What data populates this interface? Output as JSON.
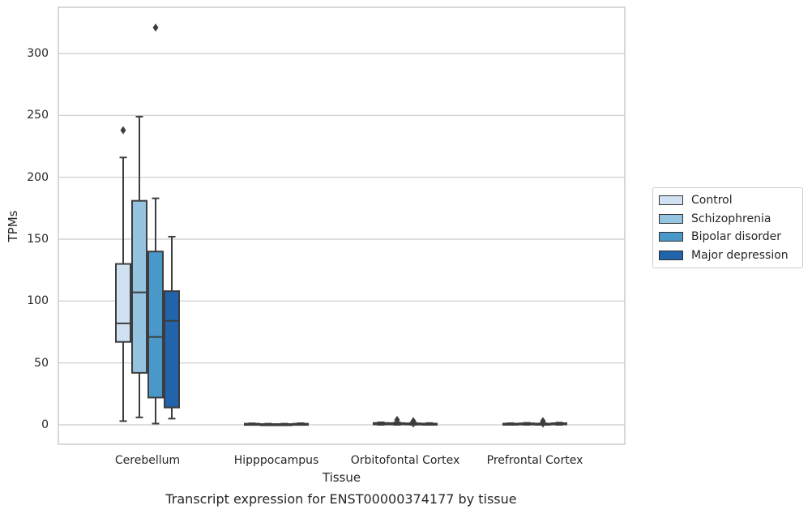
{
  "chart_data": {
    "type": "box",
    "title": "",
    "caption": "Transcript expression for ENST00000374177 by tissue",
    "xlabel": "Tissue",
    "ylabel": "TPMs",
    "ylim": [
      -15,
      330
    ],
    "yticks": [
      0,
      50,
      100,
      150,
      200,
      250,
      300
    ],
    "grid": "horizontal",
    "legend_position": "right",
    "categories": [
      "Cerebellum",
      "Hipppocampus",
      "Orbitofontal Cortex",
      "Prefrontal Cortex"
    ],
    "series": [
      {
        "name": "Control",
        "color": "#d0e1f2",
        "boxes": [
          {
            "whisker_low": 3,
            "q1": 67,
            "median": 82,
            "q3": 130,
            "whisker_high": 216,
            "outliers": [
              238
            ]
          },
          {
            "whisker_low": 0,
            "q1": 0.2,
            "median": 0.5,
            "q3": 0.9,
            "whisker_high": 1.2,
            "outliers": []
          },
          {
            "whisker_low": 0,
            "q1": 0.3,
            "median": 0.8,
            "q3": 1.5,
            "whisker_high": 2,
            "outliers": []
          },
          {
            "whisker_low": 0,
            "q1": 0.2,
            "median": 0.5,
            "q3": 1,
            "whisker_high": 1.3,
            "outliers": []
          }
        ]
      },
      {
        "name": "Schizophrenia",
        "color": "#94c4df",
        "boxes": [
          {
            "whisker_low": 6,
            "q1": 42,
            "median": 107,
            "q3": 181,
            "whisker_high": 249,
            "outliers": []
          },
          {
            "whisker_low": 0,
            "q1": 0.1,
            "median": 0.3,
            "q3": 0.6,
            "whisker_high": 0.9,
            "outliers": []
          },
          {
            "whisker_low": 0,
            "q1": 0.3,
            "median": 0.8,
            "q3": 1.4,
            "whisker_high": 2,
            "outliers": [
              4
            ]
          },
          {
            "whisker_low": 0,
            "q1": 0.3,
            "median": 0.7,
            "q3": 1.2,
            "whisker_high": 1.6,
            "outliers": []
          }
        ]
      },
      {
        "name": "Bipolar disorder",
        "color": "#4a98c9",
        "boxes": [
          {
            "whisker_low": 1,
            "q1": 22,
            "median": 71,
            "q3": 140,
            "whisker_high": 183,
            "outliers": [
              321
            ]
          },
          {
            "whisker_low": 0,
            "q1": 0.1,
            "median": 0.3,
            "q3": 0.6,
            "whisker_high": 0.9,
            "outliers": []
          },
          {
            "whisker_low": 0,
            "q1": 0.2,
            "median": 0.6,
            "q3": 1.2,
            "whisker_high": 1.8,
            "outliers": [
              3,
              1
            ]
          },
          {
            "whisker_low": 0,
            "q1": 0.2,
            "median": 0.5,
            "q3": 1,
            "whisker_high": 1.4,
            "outliers": [
              3,
              1
            ]
          }
        ]
      },
      {
        "name": "Major depression",
        "color": "#2164ab",
        "boxes": [
          {
            "whisker_low": 5,
            "q1": 14,
            "median": 84,
            "q3": 108,
            "whisker_high": 152,
            "outliers": []
          },
          {
            "whisker_low": 0,
            "q1": 0.2,
            "median": 0.5,
            "q3": 0.9,
            "whisker_high": 1.3,
            "outliers": []
          },
          {
            "whisker_low": 0,
            "q1": 0.2,
            "median": 0.5,
            "q3": 1,
            "whisker_high": 1.4,
            "outliers": []
          },
          {
            "whisker_low": 0,
            "q1": 0.3,
            "median": 0.7,
            "q3": 1.3,
            "whisker_high": 1.8,
            "outliers": []
          }
        ]
      }
    ]
  }
}
